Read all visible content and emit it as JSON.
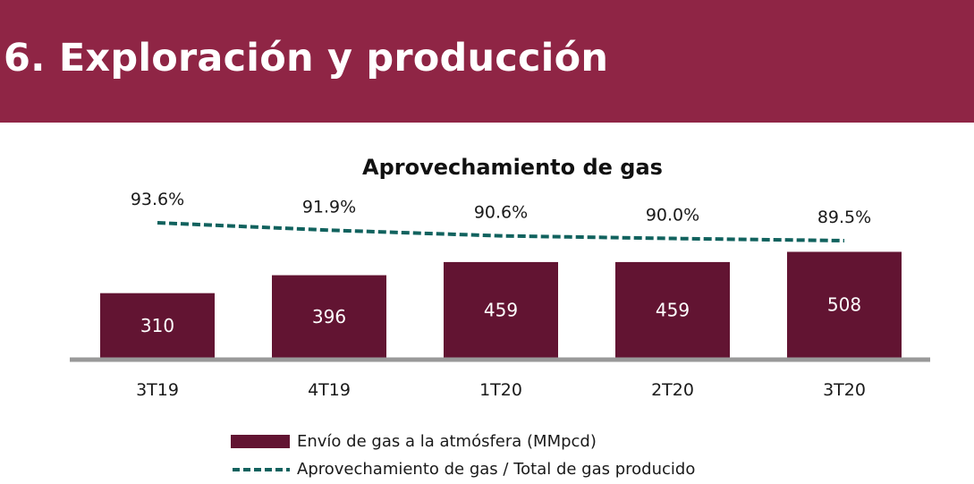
{
  "header": {
    "title": "6. Exploración y producción"
  },
  "colors": {
    "header_bg": "#8f2545",
    "bar": "#621432",
    "line": "#11625e",
    "axis": "#999999"
  },
  "chart_data": {
    "type": "bar",
    "title": "Aprovechamiento de gas",
    "categories": [
      "3T19",
      "4T19",
      "1T20",
      "2T20",
      "3T20"
    ],
    "series": [
      {
        "name": "Envío de gas a la atmósfera (MMpcd)",
        "type": "bar",
        "values": [
          310,
          396,
          459,
          459,
          508
        ],
        "value_labels": [
          "310",
          "396",
          "459",
          "459",
          "508"
        ]
      },
      {
        "name": "Aprovechamiento de gas / Total de gas producido",
        "type": "line",
        "style": "dashed",
        "values": [
          93.6,
          91.9,
          90.6,
          90.0,
          89.5
        ],
        "value_labels": [
          "93.6%",
          "91.9%",
          "90.6%",
          "90.0%",
          "89.5%"
        ]
      }
    ],
    "legend_position": "bottom",
    "grid": false
  }
}
